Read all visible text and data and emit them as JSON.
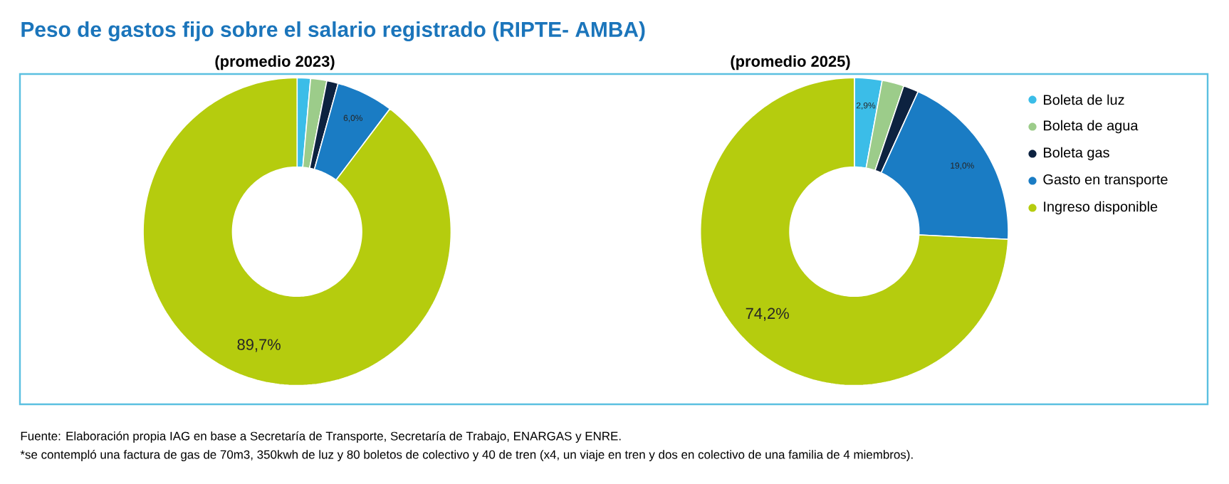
{
  "chart_data": [
    {
      "type": "donut",
      "title": "Peso de gastos fijo sobre el salario registrado (RIPTE- AMBA)",
      "subtitle": "(promedio 2023)",
      "categories": [
        null,
        null,
        null,
        null,
        null
      ],
      "values": [
        1.4,
        1.7,
        1.2,
        6.0,
        89.7
      ],
      "colors": [
        "#3bbde8",
        "#9ccc8a",
        "#0d2240",
        "#1a7cc4",
        "#b5cc0e"
      ],
      "value_labels": [
        null,
        null,
        null,
        "6,0%",
        "89,7%"
      ]
    },
    {
      "type": "donut",
      "subtitle": "(promedio 2025)",
      "categories": [
        "Boleta de luz",
        "Boleta de agua",
        "Boleta gas",
        "Gasto en transporte",
        "Ingreso disponible"
      ],
      "values": [
        2.9,
        2.3,
        1.6,
        19.0,
        74.2
      ],
      "colors": [
        "#3bbde8",
        "#9ccc8a",
        "#0d2240",
        "#1a7cc4",
        "#b5cc0e"
      ],
      "value_labels": [
        "2,9%",
        null,
        null,
        "19,0%",
        "74,2%"
      ],
      "legend": "right",
      "annotations": [
        "Fuente: Elaboración propia IAG en base a Secretaría de Transporte, Secretaría de Trabajo, ENARGAS y ENRE.",
        "*se contempló una factura de gas de 70m3, 350kwh de luz y 80 boletos de colectivo y 40 de tren (x4, un viaje en tren y dos en colectivo de una familia de 4 miembros)."
      ]
    }
  ]
}
